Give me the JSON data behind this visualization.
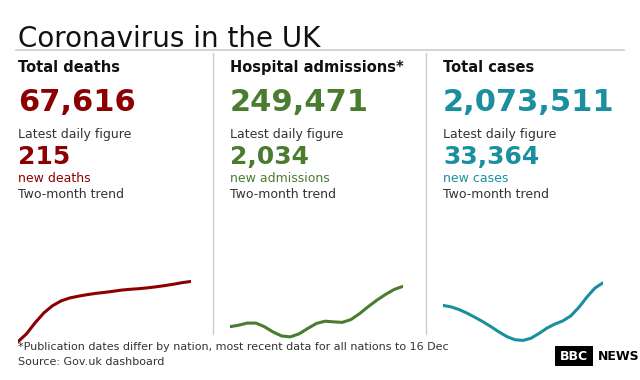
{
  "title": "Coronavirus in the UK",
  "title_fontsize": 20,
  "title_color": "#111111",
  "bg_color": "#ffffff",
  "separator_color": "#cccccc",
  "columns": [
    {
      "heading": "Total deaths",
      "total": "67,616",
      "total_color": "#8B0000",
      "daily_label": "Latest daily figure",
      "daily_value": "215",
      "daily_color": "#8B0000",
      "daily_sub": "new deaths",
      "daily_sub_color": "#8B0000",
      "trend_label": "Two-month trend",
      "trend_color": "#8B0000",
      "trend_x": [
        0,
        1,
        2,
        3,
        4,
        5,
        6,
        7,
        8,
        9,
        10,
        11,
        12,
        13,
        14,
        15,
        16,
        17,
        18,
        19,
        20
      ],
      "trend_y": [
        0.2,
        0.4,
        0.6,
        0.7,
        0.8,
        0.85,
        0.9,
        0.88,
        0.92,
        0.95,
        0.93,
        0.96,
        0.98,
        1.0,
        0.97,
        1.02,
        1.0,
        1.05,
        1.03,
        1.08,
        1.1
      ]
    },
    {
      "heading": "Hospital admissions*",
      "total": "249,471",
      "total_color": "#4a7c2f",
      "daily_label": "Latest daily figure",
      "daily_value": "2,034",
      "daily_color": "#4a7c2f",
      "daily_sub": "new admissions",
      "daily_sub_color": "#4a7c2f",
      "trend_label": "Two-month trend",
      "trend_color": "#4a7c2f",
      "trend_x": [
        0,
        1,
        2,
        3,
        4,
        5,
        6,
        7,
        8,
        9,
        10,
        11,
        12,
        13,
        14,
        15,
        16,
        17,
        18,
        19,
        20
      ],
      "trend_y": [
        0.5,
        0.5,
        0.55,
        0.6,
        0.5,
        0.45,
        0.4,
        0.38,
        0.42,
        0.5,
        0.55,
        0.6,
        0.55,
        0.5,
        0.55,
        0.62,
        0.7,
        0.75,
        0.8,
        0.85,
        0.9
      ]
    },
    {
      "heading": "Total cases",
      "total": "2,073,511",
      "total_color": "#1a8fa0",
      "daily_label": "Latest daily figure",
      "daily_value": "33,364",
      "daily_color": "#1a8fa0",
      "daily_sub": "new cases",
      "daily_sub_color": "#1a8fa0",
      "trend_label": "Two-month trend",
      "trend_color": "#1a8fa0",
      "trend_x": [
        0,
        1,
        2,
        3,
        4,
        5,
        6,
        7,
        8,
        9,
        10,
        11,
        12,
        13,
        14,
        15,
        16,
        17,
        18,
        19,
        20
      ],
      "trend_y": [
        0.7,
        0.68,
        0.65,
        0.6,
        0.55,
        0.5,
        0.45,
        0.38,
        0.3,
        0.28,
        0.25,
        0.28,
        0.35,
        0.45,
        0.5,
        0.48,
        0.52,
        0.65,
        0.8,
        0.92,
        1.0
      ]
    }
  ],
  "footnote": "*Publication dates differ by nation, most recent data for all nations to 16 Dec\nSource: Gov.uk dashboard",
  "footnote_fontsize": 8,
  "footnote_color": "#333333",
  "bbc_news_color": "#000000"
}
